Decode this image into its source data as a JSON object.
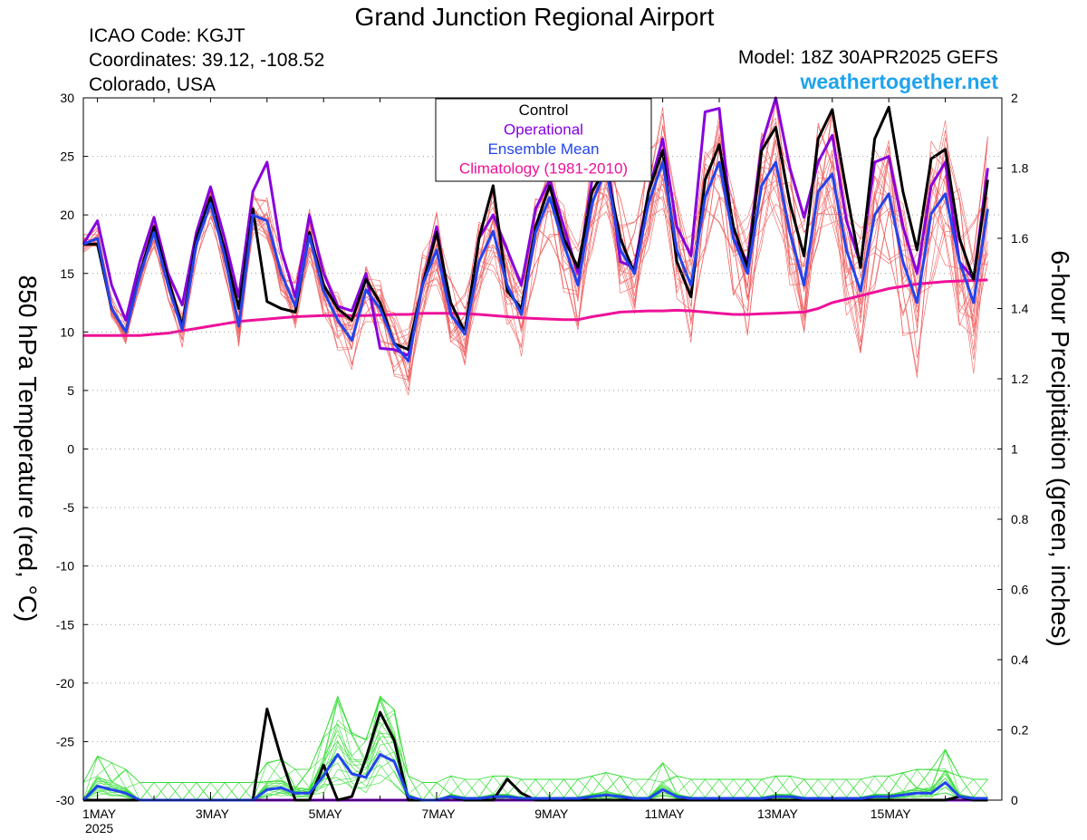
{
  "header": {
    "title": "Grand Junction Regional Airport",
    "icao": "ICAO Code: KGJT",
    "coordinates": "Coordinates: 39.12, -108.52",
    "region": "Colorado, USA",
    "model": "Model: 18Z 30APR2025 GEFS",
    "site": "weathertogether.net"
  },
  "colors": {
    "control": "#000000",
    "operational": "#8800dd",
    "ensemble_mean": "#2244ee",
    "climatology": "#ee1199",
    "members_temp": "#f06060",
    "members_precip": "#33dd33",
    "site": "#1fa3ee"
  },
  "chart_data": {
    "type": "line",
    "title": "Grand Junction Regional Airport",
    "ylabel_left": "850 hPa Temperature (red, °C)",
    "ylabel_right": "6-hour Precipitation (green, inches)",
    "ylim_left": [
      -30,
      30
    ],
    "ylim_right": [
      0,
      2
    ],
    "yticks_left": [
      "30",
      "25",
      "20",
      "15",
      "10",
      "5",
      "0",
      "-5",
      "-10",
      "-15",
      "-20",
      "-25",
      "-30"
    ],
    "yticks_right": [
      "2",
      "1.8",
      "1.6",
      "1.4",
      "1.2",
      "1",
      "0.8",
      "0.6",
      "0.4",
      "0.2",
      "0"
    ],
    "xticks": [
      "1MAY",
      "3MAY",
      "5MAY",
      "7MAY",
      "9MAY",
      "11MAY",
      "13MAY",
      "15MAY"
    ],
    "xtick_day": [
      1,
      3,
      5,
      7,
      9,
      11,
      13,
      15
    ],
    "xtick_year": "2025",
    "xlim_day": [
      0.75,
      17.0
    ],
    "legend": {
      "position": "top-center",
      "entries": [
        {
          "label": "Control",
          "color": "#000000"
        },
        {
          "label": "Operational",
          "color": "#8800dd"
        },
        {
          "label": "Ensemble Mean",
          "color": "#2244ee"
        },
        {
          "label": "Climatology (1981-2010)",
          "color": "#ee1199"
        }
      ]
    },
    "time_step_days": 0.25,
    "time_start_day": 0.75,
    "series_temperature": [
      {
        "name": "Control",
        "values": [
          17.5,
          17.5,
          12,
          10,
          15,
          19,
          14.5,
          10.5,
          18,
          21.5,
          17,
          12,
          20.5,
          12.6,
          12,
          11.7,
          18.5,
          14,
          12,
          11,
          14.5,
          12.5,
          9,
          8.5,
          14,
          18.5,
          12.5,
          10,
          18,
          22.5,
          13.5,
          12,
          19,
          22.5,
          18,
          15.5,
          22,
          24,
          18,
          15,
          22,
          25.5,
          16,
          13,
          23,
          26,
          19,
          15.5,
          25.5,
          27.5,
          21,
          16.5,
          26.5,
          29,
          22,
          15.5,
          26.5,
          29.2,
          22,
          17,
          24.8,
          25.6,
          18,
          14.5,
          23
        ]
      },
      {
        "name": "Operational",
        "values": [
          17.5,
          19.5,
          14,
          11,
          16,
          19.8,
          15,
          12.3,
          18.5,
          22.4,
          18,
          13,
          22,
          24.5,
          17,
          13,
          20,
          15,
          12.2,
          11.8,
          15,
          8.6,
          8.5,
          8,
          14,
          19,
          11.5,
          10,
          18,
          20,
          17,
          14,
          20.5,
          23,
          19,
          15,
          23,
          25.5,
          16,
          15.5,
          22,
          26.5,
          19,
          16.5,
          28.8,
          29.1,
          18,
          16,
          26,
          30,
          24,
          19.8,
          24.5,
          26.8,
          19.5,
          15.8,
          24.5,
          25,
          19,
          15,
          22.5,
          24.5,
          16,
          14.5,
          24
        ]
      },
      {
        "name": "Ensemble Mean",
        "values": [
          17.5,
          18,
          12,
          10,
          14.8,
          18.5,
          14,
          10.2,
          17.5,
          21,
          16.5,
          10.5,
          20,
          19.5,
          15,
          12.2,
          18.2,
          13.5,
          11,
          9.3,
          13.6,
          12,
          9,
          7.5,
          14,
          17,
          11.5,
          9.8,
          16,
          18.6,
          14,
          11.5,
          18.5,
          21.5,
          17.5,
          14,
          21,
          24,
          17,
          15,
          21,
          24.5,
          17,
          14,
          21.5,
          24.5,
          18,
          15,
          22.5,
          24.5,
          18.5,
          14,
          22,
          23.5,
          17,
          13.5,
          20,
          21.8,
          16,
          12.5,
          20.1,
          21.8,
          16,
          12.5,
          20.5
        ]
      },
      {
        "name": "Climatology (1981-2010)",
        "values": [
          9.7,
          9.7,
          9.7,
          9.7,
          9.7,
          9.8,
          9.9,
          10.1,
          10.3,
          10.5,
          10.7,
          10.9,
          11,
          11.1,
          11.2,
          11.3,
          11.35,
          11.4,
          11.4,
          11.4,
          11.4,
          11.45,
          11.5,
          11.5,
          11.6,
          11.6,
          11.6,
          11.55,
          11.5,
          11.4,
          11.3,
          11.2,
          11.15,
          11.1,
          11.05,
          11.05,
          11.3,
          11.5,
          11.7,
          11.75,
          11.8,
          11.8,
          11.85,
          11.8,
          11.7,
          11.6,
          11.5,
          11.5,
          11.55,
          11.6,
          11.65,
          11.7,
          12,
          12.5,
          12.8,
          13.1,
          13.4,
          13.7,
          13.9,
          14.1,
          14.2,
          14.3,
          14.35,
          14.4,
          14.45
        ]
      }
    ],
    "series_precip": [
      {
        "name": "Control",
        "values": [
          0,
          0,
          0,
          0,
          0,
          0,
          0,
          0,
          0,
          0,
          0,
          0,
          0,
          0.26,
          0.12,
          0,
          0,
          0.1,
          0,
          0.01,
          0.12,
          0.25,
          0.17,
          0,
          0,
          0,
          0.01,
          0,
          0,
          0,
          0.06,
          0.02,
          0,
          0,
          0,
          0,
          0,
          0,
          0,
          0,
          0,
          0,
          0,
          0,
          0,
          0,
          0,
          0,
          0,
          0,
          0,
          0,
          0,
          0,
          0,
          0,
          0,
          0,
          0,
          0,
          0,
          0,
          0.01,
          0,
          0
        ]
      },
      {
        "name": "Operational",
        "values": [
          0,
          0,
          0,
          0,
          0,
          0,
          0,
          0,
          0,
          0,
          0,
          0,
          0,
          0,
          0,
          0,
          0,
          0,
          0,
          0,
          0,
          0,
          0,
          0,
          0,
          0,
          0,
          0,
          0,
          0,
          0,
          0,
          0,
          0,
          0,
          0,
          0,
          0,
          0,
          0,
          0,
          0,
          0,
          0,
          0,
          0,
          0,
          0,
          0,
          0,
          0,
          0,
          0,
          0,
          0,
          0,
          0,
          0,
          0,
          0,
          0,
          0,
          0,
          0,
          0
        ]
      },
      {
        "name": "Ensemble Mean",
        "values": [
          0,
          0.04,
          0.03,
          0.02,
          0,
          0,
          0,
          0,
          0,
          0,
          0,
          0,
          0,
          0.03,
          0.035,
          0.02,
          0.02,
          0.07,
          0.13,
          0.075,
          0.065,
          0.13,
          0.11,
          0.01,
          0,
          0,
          0.01,
          0.005,
          0.005,
          0.01,
          0.01,
          0.005,
          0.005,
          0.005,
          0.005,
          0.005,
          0.01,
          0.015,
          0.01,
          0.005,
          0.005,
          0.03,
          0.01,
          0.005,
          0.005,
          0.005,
          0.005,
          0.005,
          0.005,
          0.01,
          0.01,
          0.005,
          0.005,
          0.005,
          0.005,
          0.005,
          0.01,
          0.01,
          0.015,
          0.02,
          0.02,
          0.05,
          0.01,
          0.005,
          0.005
        ]
      }
    ]
  }
}
